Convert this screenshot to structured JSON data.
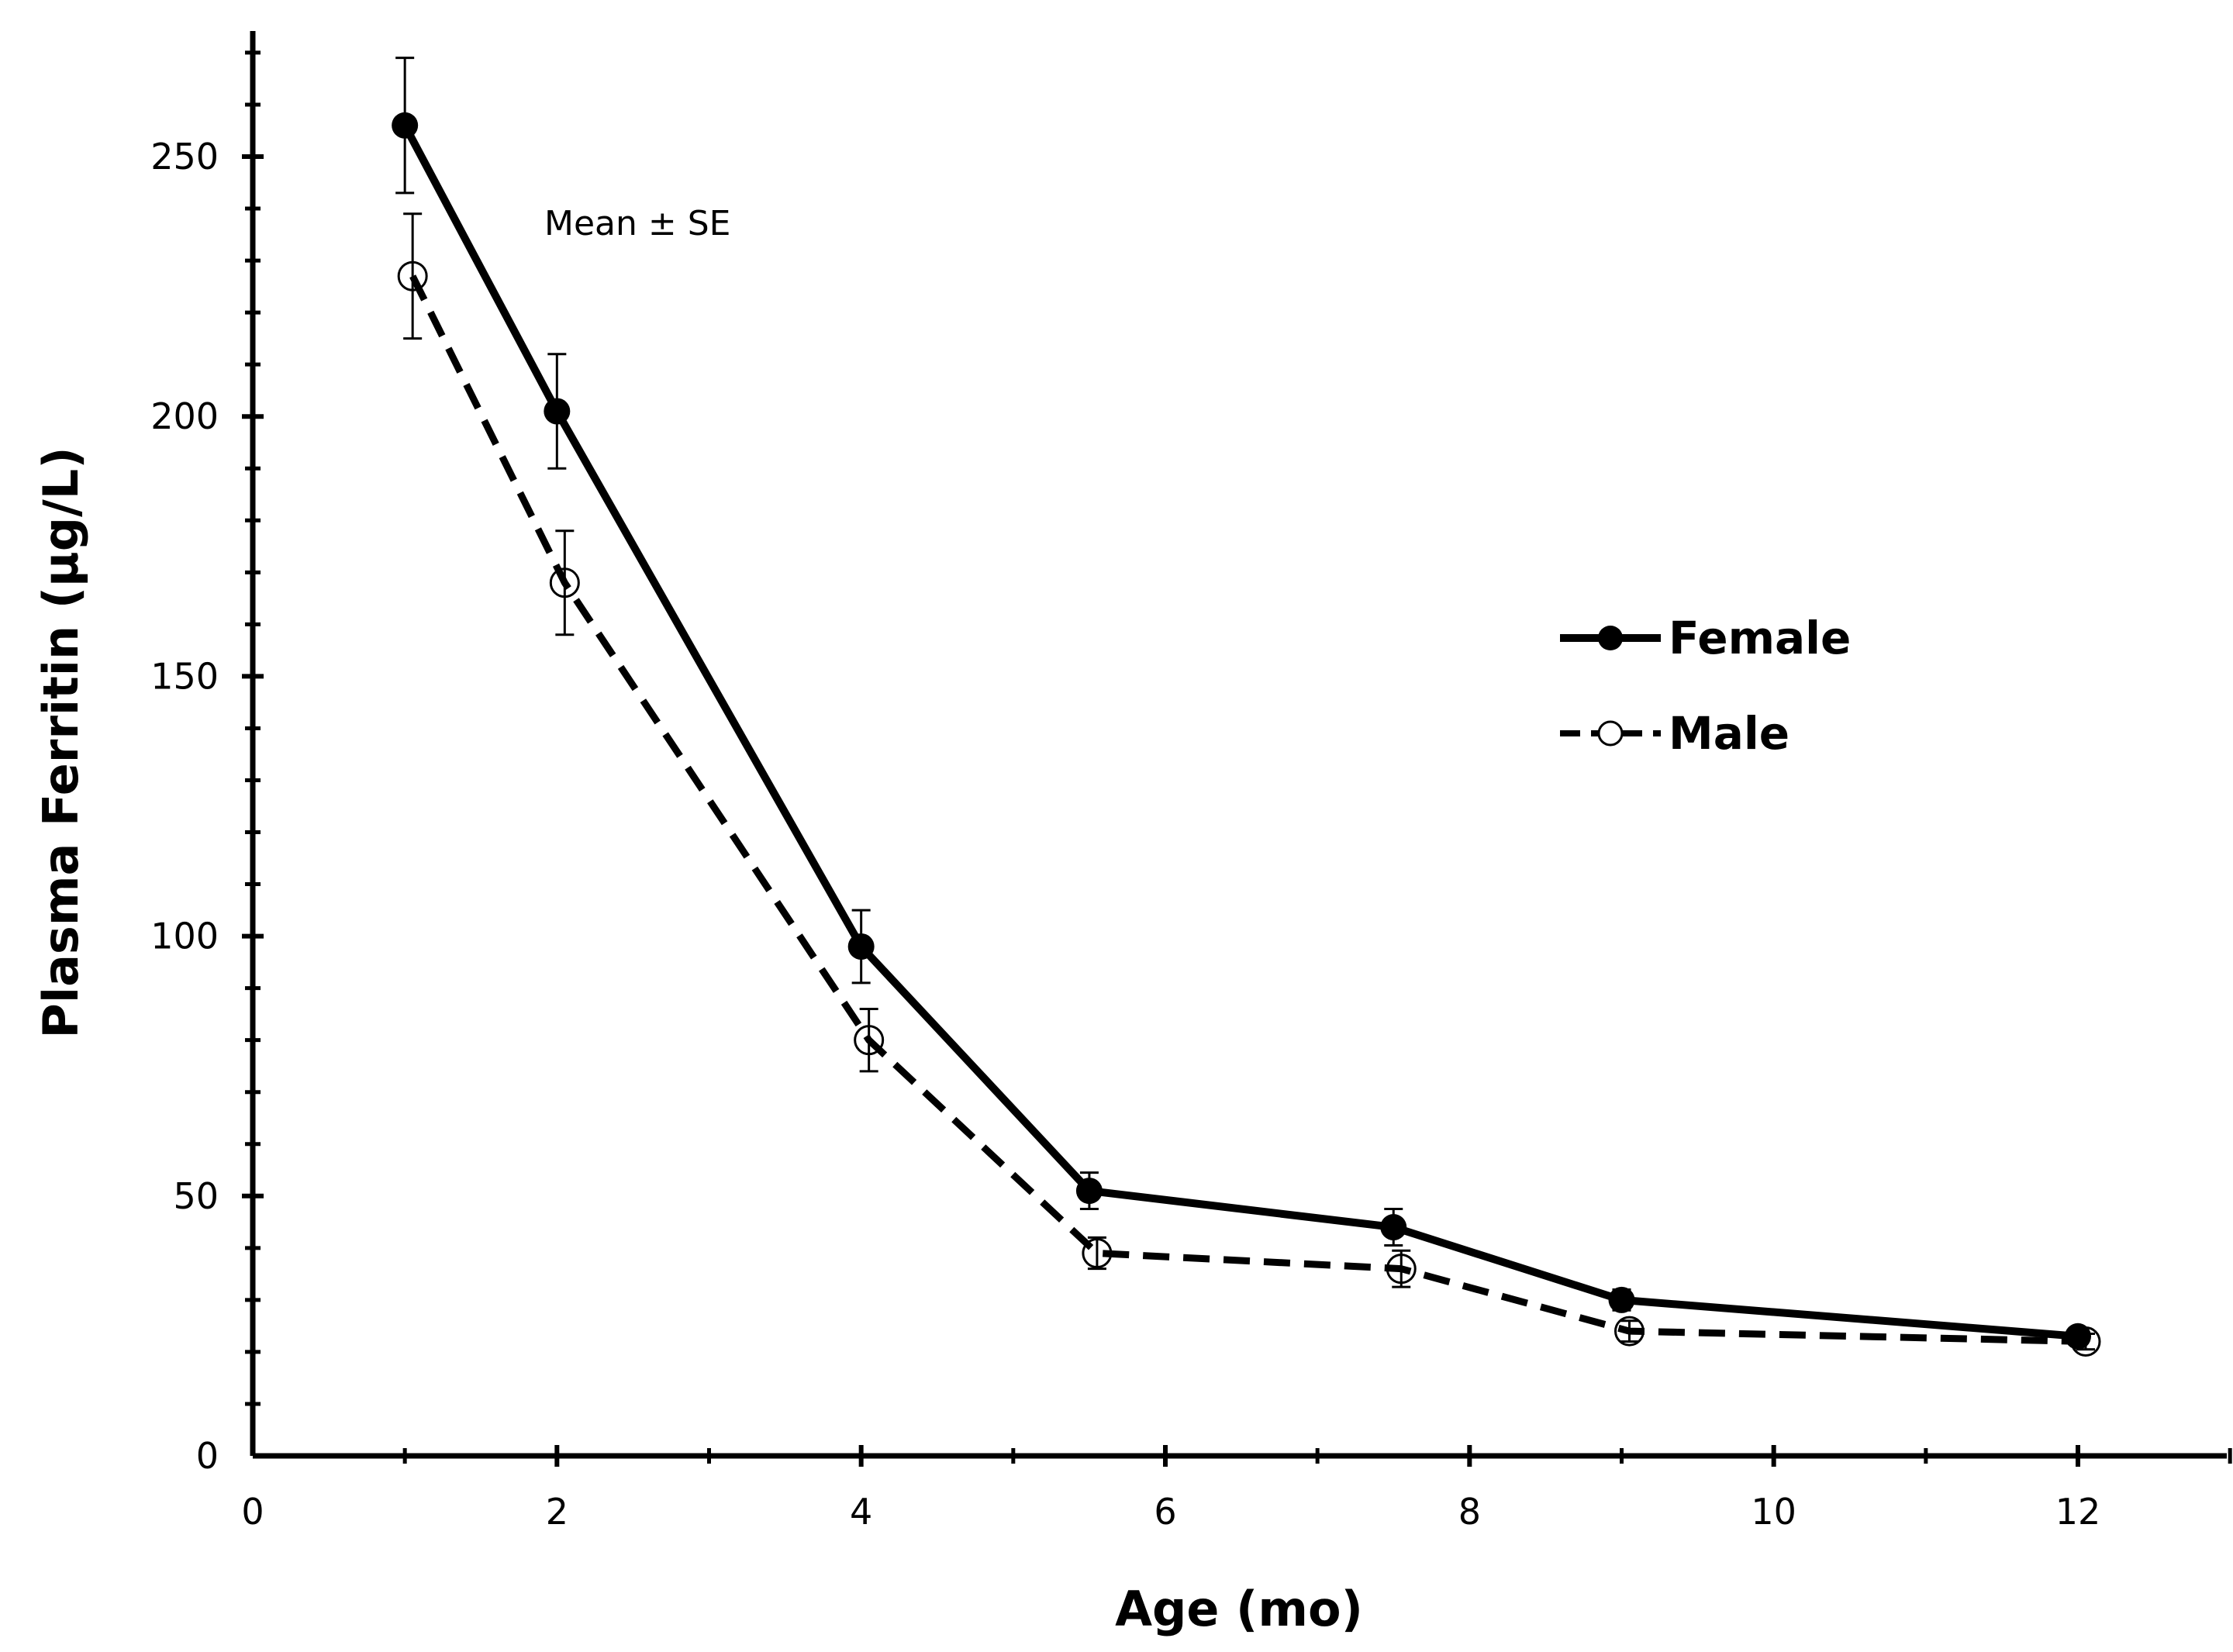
{
  "chart_data": {
    "type": "line",
    "title": "",
    "xlabel": "Age (mo)",
    "ylabel": "Plasma Ferritin (µg/L)",
    "annotation": "Mean ± SE",
    "xlim": [
      0,
      13
    ],
    "ylim": [
      0,
      275
    ],
    "x_ticks": [
      0,
      2,
      4,
      6,
      8,
      10,
      12
    ],
    "x_tick_labels": [
      "0",
      "2",
      "4",
      "6",
      "8",
      "10",
      "12"
    ],
    "y_ticks": [
      0,
      50,
      100,
      150,
      200,
      250
    ],
    "y_tick_labels": [
      "0",
      "50",
      "100",
      "150",
      "200",
      "250"
    ],
    "legend_position": "right",
    "grid": false,
    "series": [
      {
        "name": "Female",
        "style": "solid",
        "marker": "filled-circle",
        "x": [
          1,
          2,
          4,
          5.5,
          7.5,
          9,
          12
        ],
        "values": [
          256,
          201,
          98,
          51,
          44,
          30,
          23
        ],
        "se": [
          13,
          11,
          7,
          3.5,
          3.5,
          2,
          1.5
        ]
      },
      {
        "name": "Male",
        "style": "dashed",
        "marker": "open-circle",
        "x": [
          1,
          2,
          4,
          5.5,
          7.5,
          9,
          12
        ],
        "values": [
          227,
          168,
          80,
          39,
          36,
          24,
          22
        ],
        "se": [
          12,
          10,
          6,
          3,
          3.5,
          2,
          1.5
        ]
      }
    ]
  }
}
